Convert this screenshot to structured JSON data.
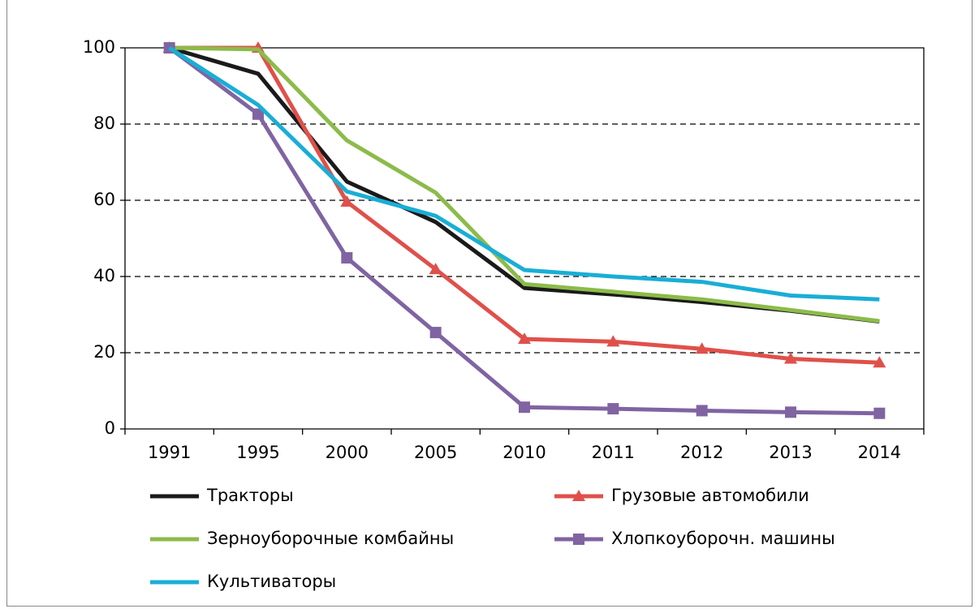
{
  "chart_data": {
    "type": "line",
    "categories": [
      "1991",
      "1995",
      "2000",
      "2005",
      "2010",
      "2011",
      "2012",
      "2013",
      "2014"
    ],
    "series": [
      {
        "name": "Тракторы",
        "color": "#1a1a1a",
        "marker": "none",
        "values": [
          100,
          93.2,
          64.9,
          54.3,
          37,
          35.3,
          33.3,
          31,
          28.2
        ]
      },
      {
        "name": "Грузовые автомобили",
        "color": "#e0504a",
        "marker": "triangle",
        "values": [
          100,
          100,
          59.6,
          41.9,
          23.6,
          22.9,
          21,
          18.4,
          17.4
        ]
      },
      {
        "name": "Зерноуборочные комбайны",
        "color": "#8cbb4a",
        "marker": "none",
        "values": [
          100,
          99.6,
          75.7,
          62,
          38,
          36,
          34,
          31.2,
          28.3
        ]
      },
      {
        "name": "Хлопкоуборочн. машины",
        "color": "#8064a2",
        "marker": "square",
        "values": [
          100,
          82.6,
          44.9,
          25.3,
          5.7,
          5.3,
          4.8,
          4.4,
          4.1
        ]
      },
      {
        "name": "Культиваторы",
        "color": "#19aed6",
        "marker": "none",
        "values": [
          100,
          85,
          62.3,
          55.9,
          41.7,
          40,
          38.6,
          35,
          34
        ]
      }
    ],
    "ylim": [
      0,
      100
    ],
    "yticks": [
      0,
      20,
      40,
      60,
      80,
      100
    ],
    "grid": true
  }
}
